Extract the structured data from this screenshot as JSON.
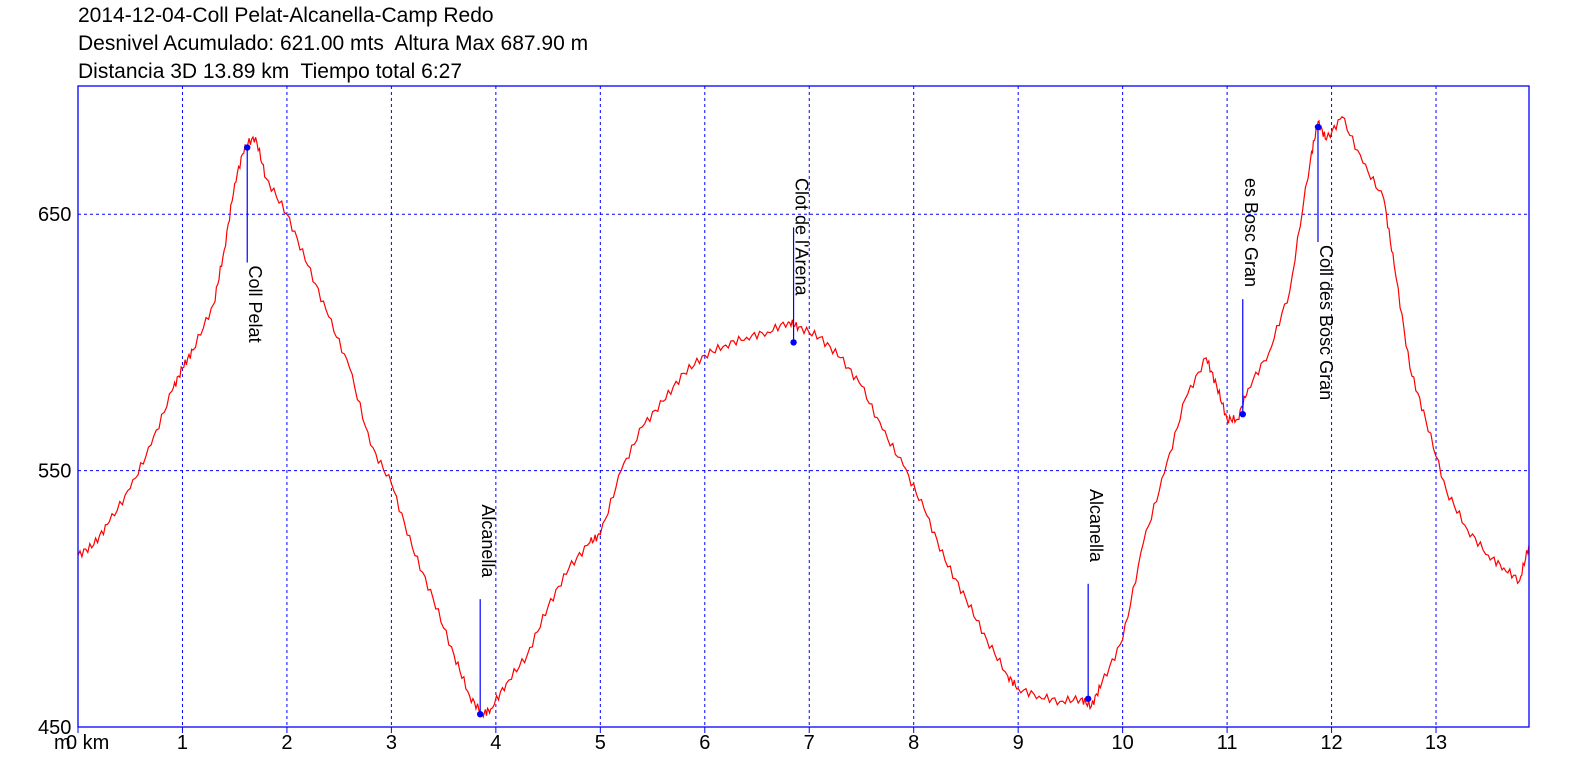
{
  "header": {
    "line1": "2014-12-04-Coll Pelat-Alcanella-Camp Redo",
    "line2": "Desnivel Acumulado: 621.00 mts  Altura Max 687.90 m",
    "line3": "Distancia 3D 13.89 km  Tiempo total 6:27"
  },
  "colors": {
    "profile": "#ff0000",
    "axis": "#0000ff",
    "grid": "#0000ff",
    "marker": "#0000ff"
  },
  "chart_data": {
    "type": "line",
    "title": "2014-12-04-Coll Pelat-Alcanella-Camp Redo",
    "xlabel": "km",
    "ylabel": "m",
    "xlim": [
      0,
      13.89
    ],
    "ylim": [
      450,
      700
    ],
    "x_ticks": [
      0,
      1,
      2,
      3,
      4,
      5,
      6,
      7,
      8,
      9,
      10,
      11,
      12,
      13
    ],
    "x_tick_labels": [
      "0 km",
      "1",
      "2",
      "3",
      "4",
      "5",
      "6",
      "7",
      "8",
      "9",
      "10",
      "11",
      "12",
      "13"
    ],
    "y_ticks": [
      450,
      550,
      650
    ],
    "y_tick_labels": [
      "450",
      "550",
      "650"
    ],
    "y_unit_label": "m",
    "grid": true,
    "series": [
      {
        "x": [
          0,
          0.15,
          0.3,
          0.5,
          0.7,
          0.9,
          1.0,
          1.1,
          1.3,
          1.4,
          1.5,
          1.6,
          1.7,
          1.8,
          2.0,
          2.2,
          2.4,
          2.6,
          2.8,
          3.0,
          3.2,
          3.4,
          3.6,
          3.75,
          3.87,
          3.95,
          4.1,
          4.3,
          4.5,
          4.7,
          4.9,
          5.0,
          5.2,
          5.4,
          5.6,
          5.8,
          6.0,
          6.2,
          6.4,
          6.6,
          6.8,
          6.9,
          7.1,
          7.3,
          7.5,
          7.7,
          7.9,
          8.1,
          8.3,
          8.5,
          8.7,
          8.9,
          9.0,
          9.2,
          9.4,
          9.6,
          9.7,
          9.8,
          10.0,
          10.2,
          10.4,
          10.6,
          10.8,
          10.9,
          11.0,
          11.1,
          11.2,
          11.4,
          11.6,
          11.8,
          11.87,
          11.95,
          12.1,
          12.3,
          12.5,
          12.6,
          12.75,
          12.9,
          13.1,
          13.3,
          13.5,
          13.65,
          13.8,
          13.89
        ],
        "y": [
          517,
          521,
          530,
          543,
          560,
          581,
          590,
          597,
          615,
          636,
          662,
          677,
          680,
          664,
          650,
          630,
          610,
          590,
          560,
          545,
          520,
          500,
          478,
          462,
          455,
          457,
          467,
          478,
          497,
          512,
          522,
          525,
          550,
          567,
          577,
          588,
          595,
          599,
          602,
          604,
          608,
          606,
          602,
          594,
          583,
          566,
          552,
          535,
          515,
          500,
          484,
          470,
          465,
          462,
          460,
          461,
          458,
          467,
          484,
          522,
          549,
          578,
          594,
          583,
          570,
          570,
          582,
          596,
          620,
          672,
          686,
          679,
          688,
          670,
          656,
          630,
          590,
          570,
          542,
          527,
          517,
          512,
          507,
          521
        ]
      }
    ],
    "waypoints": [
      {
        "name": "Coll Pelat",
        "x": 1.62,
        "y": 676
      },
      {
        "name": "Alcanella",
        "x": 3.85,
        "y": 455
      },
      {
        "name": "Clot de l'Arena",
        "x": 6.85,
        "y": 600
      },
      {
        "name": "Alcanella",
        "x": 9.67,
        "y": 461
      },
      {
        "name": "es Bosc Gran",
        "x": 11.15,
        "y": 572
      },
      {
        "name": "Coll des Bosc Gran",
        "x": 11.87,
        "y": 684
      }
    ]
  }
}
